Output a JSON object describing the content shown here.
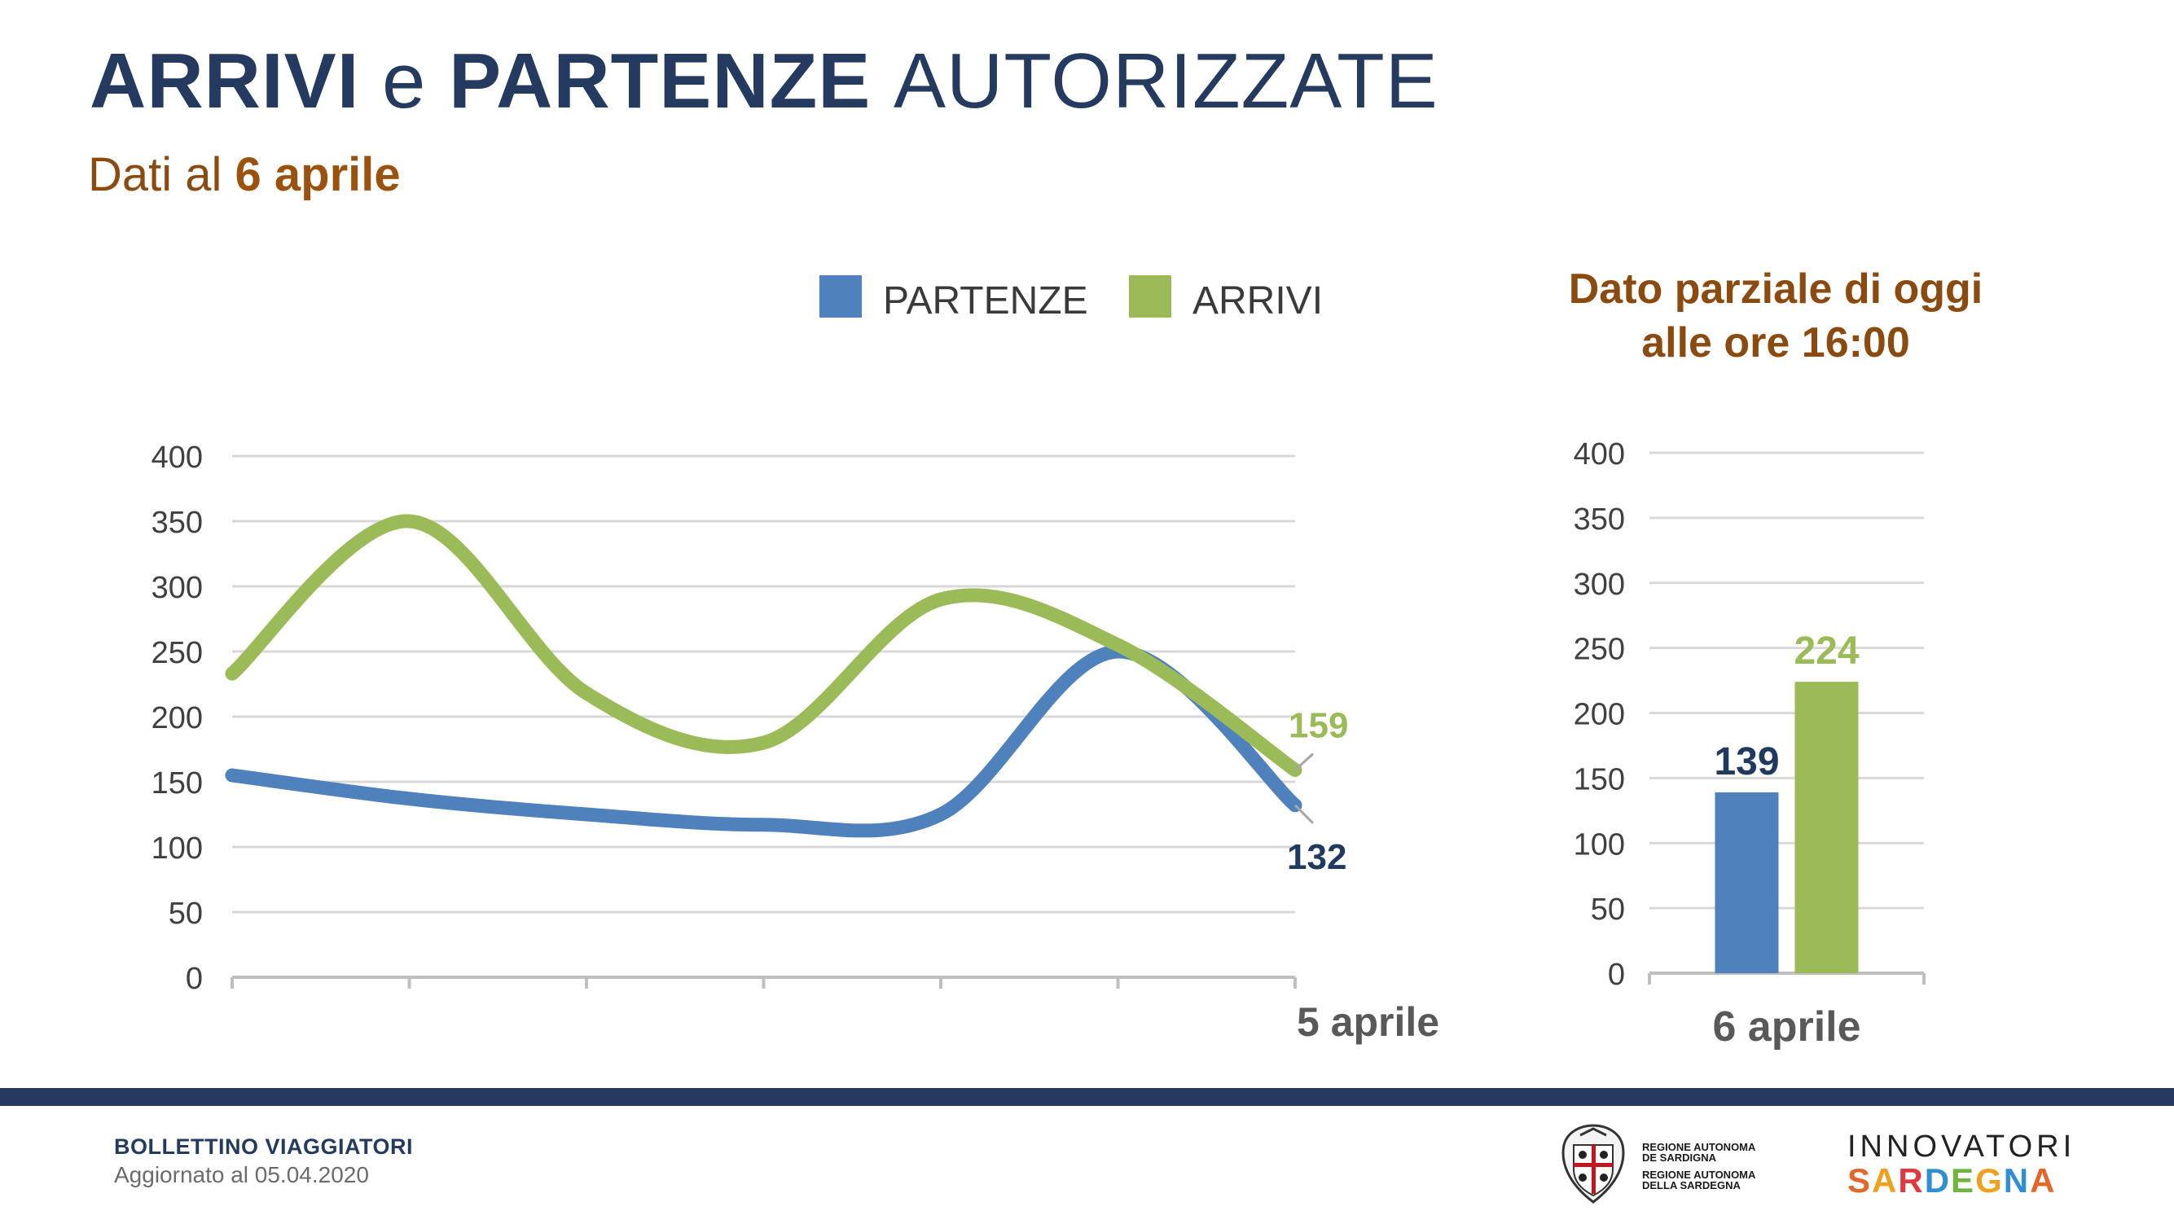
{
  "header": {
    "title_part1": "ARRIVI",
    "title_part2": "e",
    "title_part3": "PARTENZE",
    "title_part4": "AUTORIZZATE",
    "subtitle_prefix": "Dati al",
    "subtitle_date": "6 aprile"
  },
  "legend": {
    "partenze": "PARTENZE",
    "arrivi": "ARRIVI"
  },
  "partial": {
    "title_line1": "Dato parziale di oggi",
    "title_line2": "alle ore 16:00"
  },
  "colors": {
    "partenze": "#4f81bd",
    "arrivi": "#9bbb59",
    "title": "#243a5e",
    "accent": "#8b4a10"
  },
  "chart_data": [
    {
      "type": "line",
      "title": "",
      "x": [
        "",
        "",
        "",
        "",
        "",
        "",
        "5 aprile"
      ],
      "xlabel": "",
      "ylabel": "",
      "ylim": [
        0,
        400
      ],
      "yticks": [
        0,
        50,
        100,
        150,
        200,
        250,
        300,
        350,
        400
      ],
      "grid": true,
      "legend_position": "top",
      "smooth": true,
      "series": [
        {
          "name": "PARTENZE",
          "values": [
            155,
            137,
            125,
            117,
            125,
            250,
            132
          ],
          "color": "#4f81bd"
        },
        {
          "name": "ARRIVI",
          "values": [
            233,
            350,
            218,
            180,
            290,
            255,
            159
          ],
          "color": "#9bbb59"
        }
      ],
      "annotations": [
        {
          "series": "ARRIVI",
          "label": "159"
        },
        {
          "series": "PARTENZE",
          "label": "132"
        }
      ],
      "last_x_label": "5 aprile"
    },
    {
      "type": "bar",
      "title": "Dato parziale di oggi alle ore 16:00",
      "categories": [
        "6 aprile"
      ],
      "ylim": [
        0,
        400
      ],
      "yticks": [
        0,
        50,
        100,
        150,
        200,
        250,
        300,
        350,
        400
      ],
      "grid": true,
      "series": [
        {
          "name": "PARTENZE",
          "values": [
            139
          ],
          "color": "#4f81bd"
        },
        {
          "name": "ARRIVI",
          "values": [
            224
          ],
          "color": "#9bbb59"
        }
      ],
      "data_labels": [
        "139",
        "224"
      ]
    }
  ],
  "footer": {
    "title": "BOLLETTINO VIAGGIATORI",
    "updated": "Aggiornato al 05.04.2020",
    "ras_line1": "REGIONE AUTONOMA",
    "ras_line2": "DE SARDIGNA",
    "ras_line3": "REGIONE AUTONOMA",
    "ras_line4": "DELLA SARDEGNA",
    "brand_line1": "INNOVATORI",
    "brand_line2": "SARDEGNA"
  }
}
